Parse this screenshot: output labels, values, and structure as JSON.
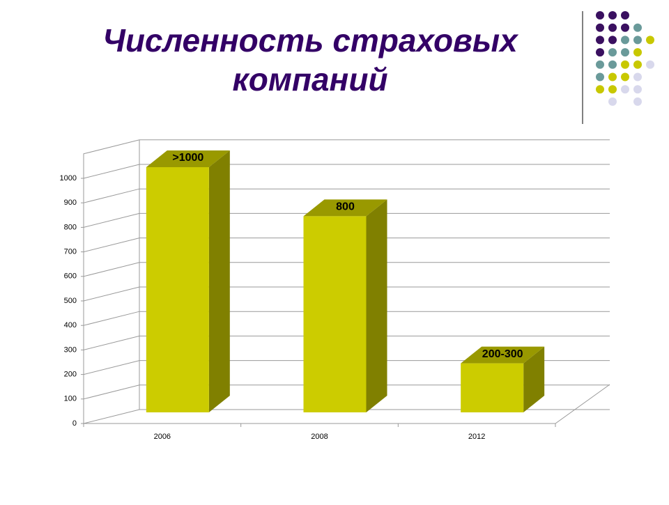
{
  "chart_data": {
    "type": "bar3d",
    "title": "Численность страховых компаний",
    "categories": [
      "2006",
      "2008",
      "2012"
    ],
    "values": [
      1000,
      800,
      200
    ],
    "value_labels": [
      ">1000",
      "800",
      "200-300"
    ],
    "color": "#cccc00",
    "ylim": [
      0,
      1100
    ],
    "yticks": [
      0,
      100,
      200,
      300,
      400,
      500,
      600,
      700,
      800,
      900,
      1000
    ],
    "grid": true
  }
}
